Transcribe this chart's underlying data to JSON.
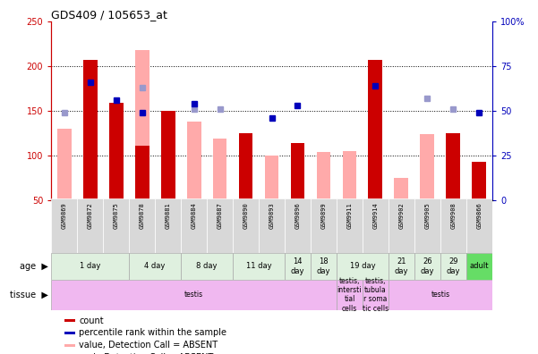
{
  "title": "GDS409 / 105653_at",
  "samples": [
    "GSM9869",
    "GSM9872",
    "GSM9875",
    "GSM9878",
    "GSM9881",
    "GSM9884",
    "GSM9887",
    "GSM9890",
    "GSM9893",
    "GSM9896",
    "GSM9899",
    "GSM9911",
    "GSM9914",
    "GSM9902",
    "GSM9905",
    "GSM9908",
    "GSM9866"
  ],
  "count_values": [
    null,
    207,
    159,
    111,
    150,
    null,
    null,
    125,
    null,
    114,
    null,
    null,
    207,
    null,
    null,
    125,
    93
  ],
  "count_absent_values": [
    130,
    null,
    null,
    218,
    null,
    138,
    119,
    null,
    100,
    null,
    104,
    105,
    null,
    75,
    124,
    null,
    null
  ],
  "rank_pct_values": [
    null,
    66,
    56,
    49,
    null,
    54,
    null,
    null,
    46,
    53,
    null,
    null,
    64,
    null,
    null,
    null,
    49
  ],
  "rank_pct_absent_values": [
    49,
    null,
    null,
    63,
    null,
    51,
    51,
    null,
    null,
    null,
    null,
    null,
    null,
    null,
    57,
    51,
    null
  ],
  "ylim_left": [
    50,
    250
  ],
  "ylim_right": [
    0,
    100
  ],
  "yticks_left": [
    50,
    100,
    150,
    200,
    250
  ],
  "yticks_right": [
    0,
    25,
    50,
    75,
    100
  ],
  "ytick_labels_left": [
    "50",
    "100",
    "150",
    "200",
    "250"
  ],
  "ytick_labels_right": [
    "0",
    "25",
    "50",
    "75",
    "100%"
  ],
  "age_groups": [
    {
      "label": "1 day",
      "start": 0,
      "end": 3,
      "color": "#dff0df"
    },
    {
      "label": "4 day",
      "start": 3,
      "end": 5,
      "color": "#dff0df"
    },
    {
      "label": "8 day",
      "start": 5,
      "end": 7,
      "color": "#dff0df"
    },
    {
      "label": "11 day",
      "start": 7,
      "end": 9,
      "color": "#dff0df"
    },
    {
      "label": "14\nday",
      "start": 9,
      "end": 10,
      "color": "#dff0df"
    },
    {
      "label": "18\nday",
      "start": 10,
      "end": 11,
      "color": "#dff0df"
    },
    {
      "label": "19 day",
      "start": 11,
      "end": 13,
      "color": "#dff0df"
    },
    {
      "label": "21\nday",
      "start": 13,
      "end": 14,
      "color": "#dff0df"
    },
    {
      "label": "26\nday",
      "start": 14,
      "end": 15,
      "color": "#dff0df"
    },
    {
      "label": "29\nday",
      "start": 15,
      "end": 16,
      "color": "#dff0df"
    },
    {
      "label": "adult",
      "start": 16,
      "end": 17,
      "color": "#66dd66"
    }
  ],
  "tissue_groups": [
    {
      "label": "testis",
      "start": 0,
      "end": 11,
      "color": "#f0b8f0"
    },
    {
      "label": "testis,\nintersti\ntial\ncells",
      "start": 11,
      "end": 12,
      "color": "#f0b8f0"
    },
    {
      "label": "testis,\ntubula\nr soma\ntic cells",
      "start": 12,
      "end": 13,
      "color": "#f0b8f0"
    },
    {
      "label": "testis",
      "start": 13,
      "end": 17,
      "color": "#f0b8f0"
    }
  ],
  "bar_width": 0.55,
  "count_color": "#cc0000",
  "count_absent_color": "#ffaaaa",
  "rank_color": "#0000bb",
  "rank_absent_color": "#9999cc",
  "bg_color": "#ffffff",
  "plot_bg_color": "#ffffff",
  "left_axis_color": "#cc0000",
  "right_axis_color": "#0000bb",
  "legend_items": [
    {
      "color": "#cc0000",
      "label": "count"
    },
    {
      "color": "#0000bb",
      "label": "percentile rank within the sample"
    },
    {
      "color": "#ffaaaa",
      "label": "value, Detection Call = ABSENT"
    },
    {
      "color": "#9999cc",
      "label": "rank, Detection Call = ABSENT"
    }
  ]
}
